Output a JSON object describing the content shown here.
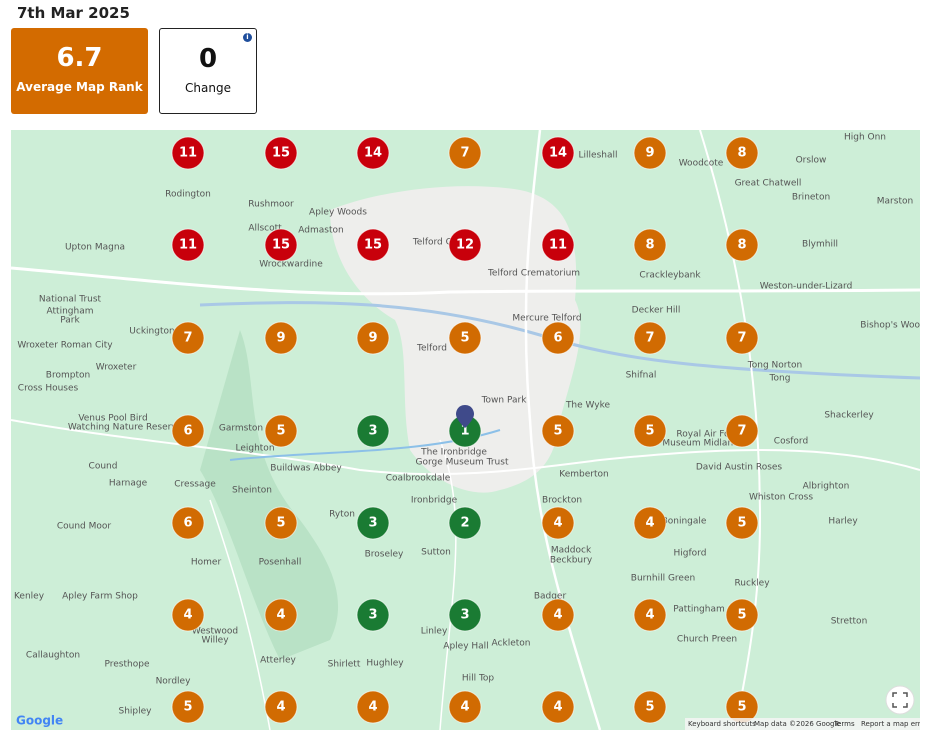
{
  "header": {
    "date": "7th Mar 2025"
  },
  "cards": [
    {
      "value": 6.7,
      "label": "Average Map Rank",
      "color": "#d36b00"
    },
    {
      "value": 0,
      "label": "Change"
    }
  ],
  "map": {
    "grid": [
      [
        {
          "rank": 11,
          "color": "#c8000b"
        },
        {
          "rank": 15,
          "color": "#c8000b"
        },
        {
          "rank": 14,
          "color": "#c8000b"
        },
        {
          "rank": 7,
          "color": "#d16b02"
        },
        {
          "rank": 14,
          "color": "#c8000b"
        },
        {
          "rank": 9,
          "color": "#d16b02"
        },
        {
          "rank": 8,
          "color": "#d16b02"
        }
      ],
      [
        {
          "rank": 11,
          "color": "#c8000b"
        },
        {
          "rank": 15,
          "color": "#c8000b"
        },
        {
          "rank": 15,
          "color": "#c8000b"
        },
        {
          "rank": 12,
          "color": "#c8000b"
        },
        {
          "rank": 11,
          "color": "#c8000b"
        },
        {
          "rank": 8,
          "color": "#d16b02"
        },
        {
          "rank": 8,
          "color": "#d16b02"
        }
      ],
      [
        {
          "rank": 7,
          "color": "#d16b02"
        },
        {
          "rank": 9,
          "color": "#d16b02"
        },
        {
          "rank": 9,
          "color": "#d16b02"
        },
        {
          "rank": 5,
          "color": "#d16b02"
        },
        {
          "rank": 6,
          "color": "#d16b02"
        },
        {
          "rank": 7,
          "color": "#d16b02"
        },
        {
          "rank": 7,
          "color": "#d16b02"
        }
      ],
      [
        {
          "rank": 6,
          "color": "#d16b02"
        },
        {
          "rank": 5,
          "color": "#d16b02"
        },
        {
          "rank": 3,
          "color": "#1a7b33"
        },
        {
          "rank": 1,
          "color": "#1a7b33"
        },
        {
          "rank": 5,
          "color": "#d16b02"
        },
        {
          "rank": 5,
          "color": "#d16b02"
        },
        {
          "rank": 7,
          "color": "#d16b02"
        }
      ],
      [
        {
          "rank": 6,
          "color": "#d16b02"
        },
        {
          "rank": 5,
          "color": "#d16b02"
        },
        {
          "rank": 3,
          "color": "#1a7b33"
        },
        {
          "rank": 2,
          "color": "#1a7b33"
        },
        {
          "rank": 4,
          "color": "#d16b02"
        },
        {
          "rank": 4,
          "color": "#d16b02"
        },
        {
          "rank": 5,
          "color": "#d16b02"
        }
      ],
      [
        {
          "rank": 4,
          "color": "#d16b02"
        },
        {
          "rank": 4,
          "color": "#d16b02"
        },
        {
          "rank": 3,
          "color": "#1a7b33"
        },
        {
          "rank": 3,
          "color": "#1a7b33"
        },
        {
          "rank": 4,
          "color": "#d16b02"
        },
        {
          "rank": 4,
          "color": "#d16b02"
        },
        {
          "rank": 5,
          "color": "#d16b02"
        }
      ],
      [
        {
          "rank": 5,
          "color": "#d16b02"
        },
        {
          "rank": 4,
          "color": "#d16b02"
        },
        {
          "rank": 4,
          "color": "#d16b02"
        },
        {
          "rank": 4,
          "color": "#d16b02"
        },
        {
          "rank": 4,
          "color": "#d16b02"
        },
        {
          "rank": 5,
          "color": "#d16b02"
        },
        {
          "rank": 5,
          "color": "#d16b02"
        }
      ]
    ],
    "labels": [
      "High Onn",
      "Orslow",
      "Woodcote",
      "Lilleshall",
      "Great Chatwell",
      "Brineton",
      "Marston",
      "Rodington",
      "Rushmoor",
      "Apley Woods",
      "Admaston",
      "Allscott",
      "Upton Magna",
      "Wrockwardine",
      "Telford College",
      "Telford Crematorium",
      "Crackleybank",
      "Blymhill",
      "Weston-under-Lizard",
      "National Trust",
      "Attingham",
      "Park",
      "Decker Hill",
      "Bishop's Wood",
      "Uckington",
      "Mercure Telford",
      "Wroxeter Roman City",
      "Telford",
      "Shifnal",
      "Tong Norton",
      "Tong",
      "Wroxeter",
      "Brompton",
      "Cross Houses",
      "Town Park",
      "The Wyke",
      "Shackerley",
      "Venus Pool Bird",
      "Watching Nature Reserve",
      "Garmston",
      "Leighton",
      "Royal Air Force",
      "Museum Midlands",
      "Cosford",
      "Cound",
      "The Ironbridge",
      "Gorge Museum Trust",
      "Buildwas Abbey",
      "Kemberton",
      "David Austin Roses",
      "Harnage",
      "Cressage",
      "Sheinton",
      "Coalbrookdale",
      "Ironbridge",
      "Brockton",
      "Whiston Cross",
      "Albrighton",
      "Cound Moor",
      "Ryton",
      "Boningale",
      "Harley",
      "Homer",
      "Posenhall",
      "Broseley",
      "Sutton",
      "Maddock",
      "Beckbury",
      "Higford",
      "Burnhill Green",
      "Ruckley",
      "Kenley",
      "Apley Farm Shop",
      "Badger",
      "Pattingham",
      "Stretton",
      "Westwood",
      "Willey",
      "Linley",
      "Apley Hall",
      "Ackleton",
      "Church Preen",
      "Callaughton",
      "Atterley",
      "Shirlett",
      "Hughley",
      "Presthope",
      "Nordley",
      "Hill Top",
      "Shipley"
    ],
    "footer": {
      "logo": "Google",
      "shortcuts": "Keyboard shortcuts",
      "attribution": "Map data ©2026 Google",
      "terms": "Terms",
      "report": "Report a map error"
    }
  }
}
